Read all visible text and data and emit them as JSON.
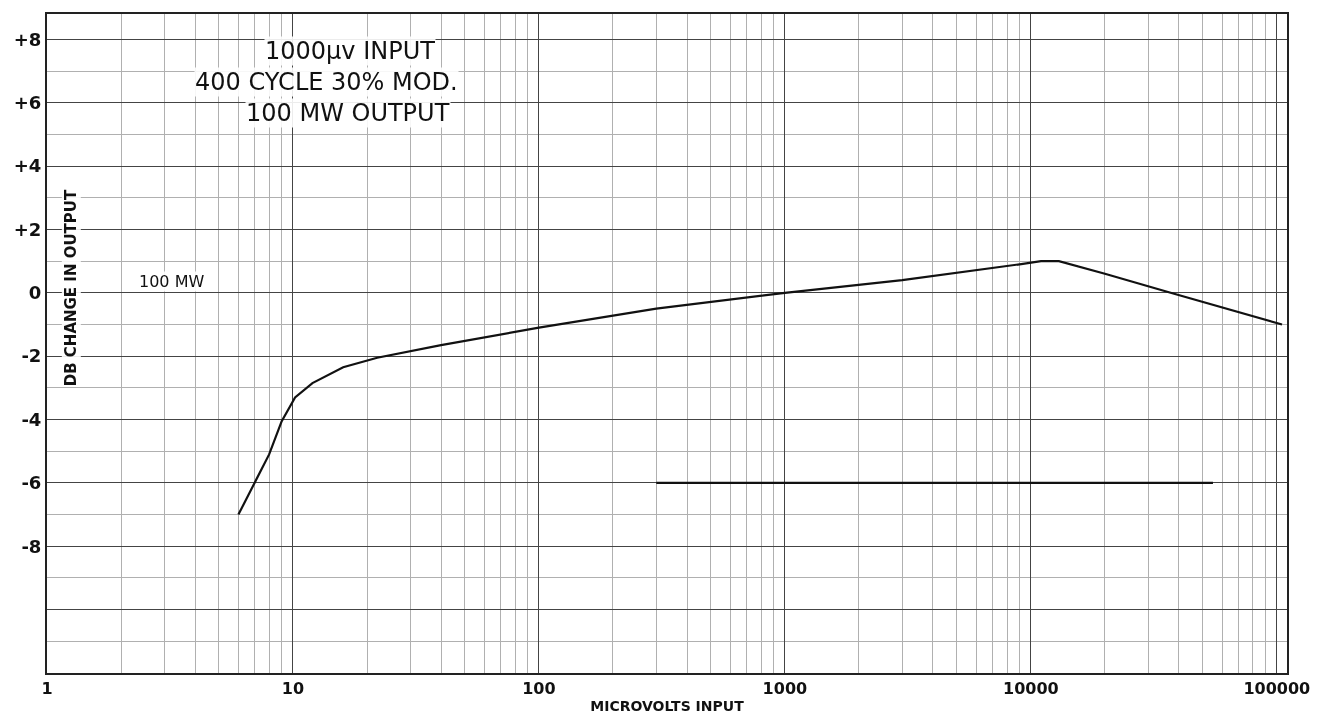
{
  "chart_data": {
    "type": "line",
    "xlabel": "MICROVOLTS INPUT",
    "ylabel": "DB CHANGE IN OUTPUT",
    "annotations": [
      "1000μv INPUT",
      "400 CYCLE 30% MOD.",
      "100 MW OUTPUT",
      "100 MW"
    ],
    "series": [
      {
        "color": "#111111",
        "x": [
          6,
          8,
          9,
          10.2,
          12,
          16,
          22,
          40,
          100,
          300,
          1000,
          3000,
          9000,
          11000,
          13000,
          20000,
          37000,
          105000
        ],
        "values": [
          -7.0,
          -5.1,
          -4.05,
          -3.3,
          -2.85,
          -2.35,
          -2.05,
          -1.65,
          -1.1,
          -0.5,
          0.0,
          0.4,
          0.9,
          1.0,
          1.0,
          0.6,
          0.0,
          -1.0
        ]
      },
      {
        "color": "#111111",
        "x": [
          300,
          55000
        ],
        "values": [
          -6,
          -6
        ]
      }
    ],
    "log": "x",
    "xlim": [
      1,
      110000
    ],
    "ylim": [
      -12,
      8.8
    ],
    "xticks": [
      1,
      10,
      100,
      1000,
      10000,
      100000
    ],
    "yticks": [
      {
        "value": 8,
        "label": "+8"
      },
      {
        "value": 6,
        "label": "+6"
      },
      {
        "value": 4,
        "label": "+4"
      },
      {
        "value": 2,
        "label": "+2"
      },
      0,
      -2,
      -4,
      -6,
      -8,
      {
        "value": -10,
        "label": null
      }
    ],
    "grid": true,
    "line_style": "solid"
  }
}
